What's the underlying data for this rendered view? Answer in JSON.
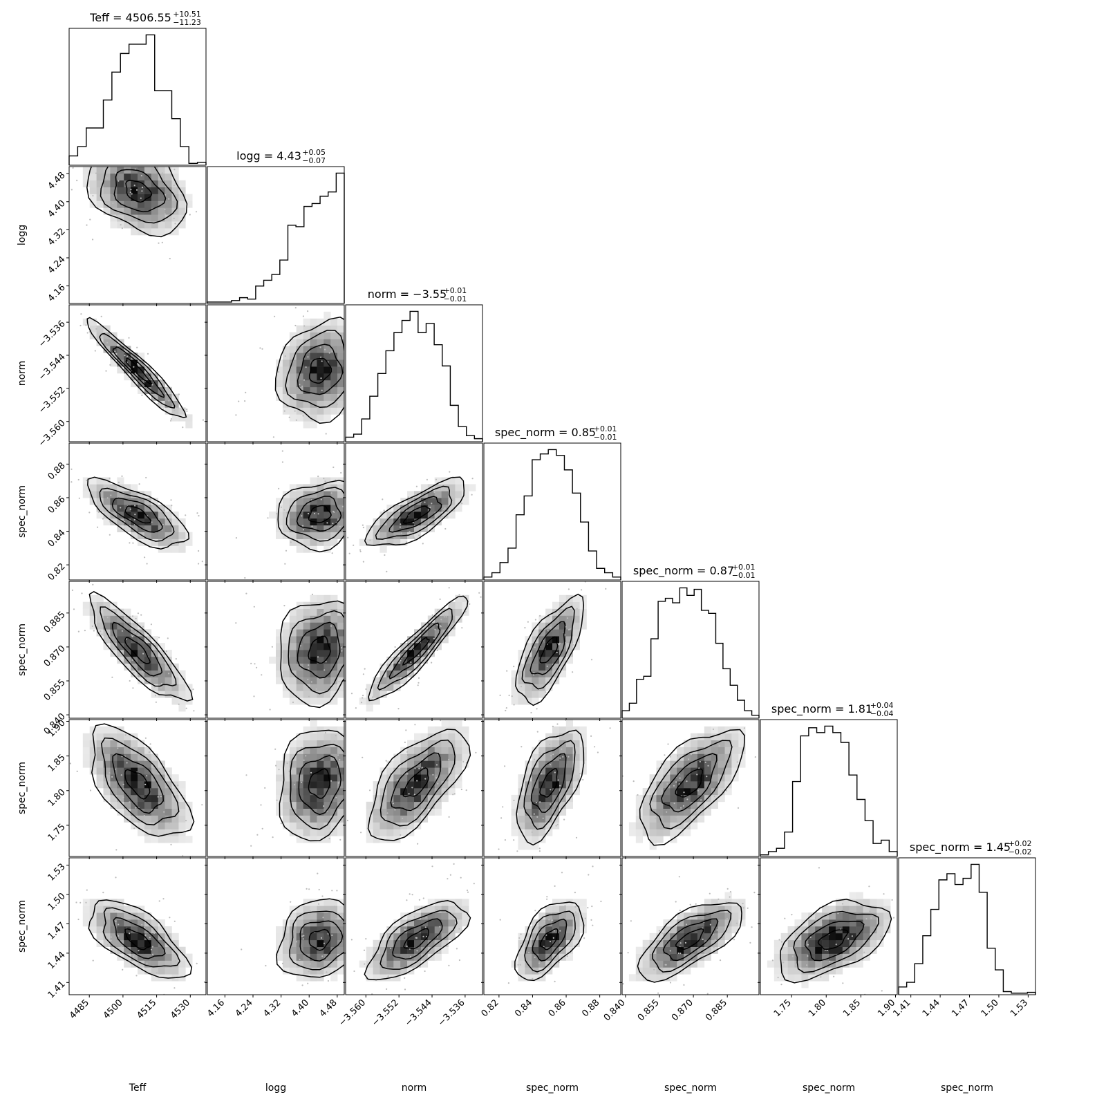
{
  "chart_data": {
    "type": "corner",
    "parameters": [
      {
        "label": "Teff",
        "range": [
          4476,
          4537
        ],
        "ticks": [
          "4485",
          "4500",
          "4515",
          "4530"
        ],
        "tick_values": [
          4485,
          4500,
          4515,
          4530
        ],
        "title": {
          "name": "Teff",
          "value": "4506.55",
          "plus": "+10.51",
          "minus": "−11.23"
        },
        "hist": [
          1,
          2,
          4,
          4,
          7,
          10,
          12,
          13,
          13,
          14,
          8,
          8,
          5,
          2,
          0.2,
          0.3
        ],
        "median": 4506.55,
        "sigma": 11
      },
      {
        "label": "logg",
        "range": [
          4.11,
          4.5
        ],
        "ticks": [
          "4.16",
          "4.24",
          "4.32",
          "4.40",
          "4.48"
        ],
        "tick_values": [
          4.16,
          4.24,
          4.32,
          4.4,
          4.48
        ],
        "title": {
          "name": "logg",
          "value": "4.43",
          "plus": "+0.05",
          "minus": "−0.07"
        },
        "hist": [
          0.1,
          0.1,
          0.1,
          0.2,
          0.4,
          0.3,
          1.2,
          1.6,
          2.0,
          3.0,
          5.4,
          5.3,
          6.7,
          6.9,
          7.4,
          7.7,
          9.0
        ],
        "median": 4.43,
        "sigma": 0.06
      },
      {
        "label": "norm",
        "range": [
          -3.5649,
          -3.5318
        ],
        "ticks": [
          "−3.560",
          "−3.552",
          "−3.544",
          "−3.536"
        ],
        "tick_values": [
          -3.56,
          -3.552,
          -3.544,
          -3.536
        ],
        "title": {
          "name": "norm",
          "value": "−3.55",
          "plus": "+0.01",
          "minus": "−0.01"
        },
        "hist": [
          0.3,
          0.5,
          1.5,
          3.0,
          4.5,
          6.0,
          7.2,
          8.0,
          8.6,
          7.2,
          7.8,
          6.4,
          5.0,
          2.4,
          1.0,
          0.4,
          0.2
        ],
        "median": -3.5477,
        "sigma": 0.006
      },
      {
        "label": "spec_norm",
        "range": [
          0.811,
          0.8925
        ],
        "ticks": [
          "0.82",
          "0.84",
          "0.86",
          "0.88"
        ],
        "tick_values": [
          0.82,
          0.84,
          0.86,
          0.88
        ],
        "title": {
          "name": "spec_norm",
          "value": "0.85",
          "plus": "+0.01",
          "minus": "−0.01"
        },
        "hist": [
          0.2,
          0.5,
          1.2,
          2.2,
          4.5,
          5.8,
          8.3,
          8.7,
          9.0,
          8.6,
          7.6,
          6.0,
          4.0,
          2.0,
          0.8,
          0.5,
          0.2
        ],
        "median": 0.85,
        "sigma": 0.01
      },
      {
        "label": "spec_norm",
        "range": [
          0.8385,
          0.899
        ],
        "ticks": [
          "0.840",
          "0.855",
          "0.870",
          "0.885"
        ],
        "tick_values": [
          0.84,
          0.855,
          0.87,
          0.885
        ],
        "title": {
          "name": "spec_norm",
          "value": "0.87",
          "plus": "+0.01",
          "minus": "−0.01"
        },
        "hist": [
          0.5,
          1.0,
          2.6,
          2.8,
          5.3,
          7.8,
          8.0,
          7.7,
          8.7,
          8.2,
          8.6,
          7.2,
          7.0,
          5.0,
          3.3,
          2.2,
          1.2,
          0.5,
          0.2
        ],
        "median": 0.8685,
        "sigma": 0.0115
      },
      {
        "label": "spec_norm",
        "range": [
          1.705,
          1.9025
        ],
        "ticks": [
          "1.75",
          "1.80",
          "1.85",
          "1.90"
        ],
        "tick_values": [
          1.75,
          1.8,
          1.85,
          1.9
        ],
        "title": {
          "name": "spec_norm",
          "value": "1.81",
          "plus": "+0.04",
          "minus": "−0.04"
        },
        "hist": [
          0.1,
          0.3,
          0.5,
          1.5,
          4.6,
          7.4,
          7.9,
          7.6,
          8.0,
          7.6,
          7.0,
          5.0,
          3.5,
          2.2,
          0.8,
          1.0,
          0.3
        ],
        "median": 1.81,
        "sigma": 0.04
      },
      {
        "label": "spec_norm",
        "range": [
          1.3975,
          1.5375
        ],
        "ticks": [
          "1.41",
          "1.44",
          "1.47",
          "1.50",
          "1.53"
        ],
        "tick_values": [
          1.41,
          1.44,
          1.47,
          1.5,
          1.53
        ],
        "title": {
          "name": "spec_norm",
          "value": "1.45",
          "plus": "+0.02",
          "minus": "−0.02"
        },
        "hist": [
          0.5,
          0.8,
          2.0,
          3.8,
          5.5,
          7.4,
          7.8,
          7.1,
          7.5,
          8.4,
          6.6,
          3.0,
          1.6,
          0.2,
          0.1,
          0.1,
          0.15
        ],
        "median": 1.454,
        "sigma": 0.02
      }
    ],
    "correlations": [
      [
        1.0,
        -0.3,
        -0.95,
        -0.7,
        -0.85,
        -0.6,
        -0.65
      ],
      [
        -0.3,
        1.0,
        0.15,
        0.15,
        0.15,
        0.15,
        0.15
      ],
      [
        -0.95,
        0.15,
        1.0,
        0.75,
        0.92,
        0.65,
        0.68
      ],
      [
        -0.7,
        0.15,
        0.75,
        1.0,
        0.68,
        0.55,
        0.55
      ],
      [
        -0.85,
        0.15,
        0.92,
        0.68,
        1.0,
        0.65,
        0.68
      ],
      [
        -0.6,
        0.15,
        0.65,
        0.55,
        0.65,
        1.0,
        0.5
      ],
      [
        -0.65,
        0.15,
        0.68,
        0.55,
        0.68,
        0.5,
        1.0
      ]
    ],
    "colors": {
      "line": "#000000",
      "points": "#bbbbbb",
      "background": "#ffffff"
    }
  }
}
